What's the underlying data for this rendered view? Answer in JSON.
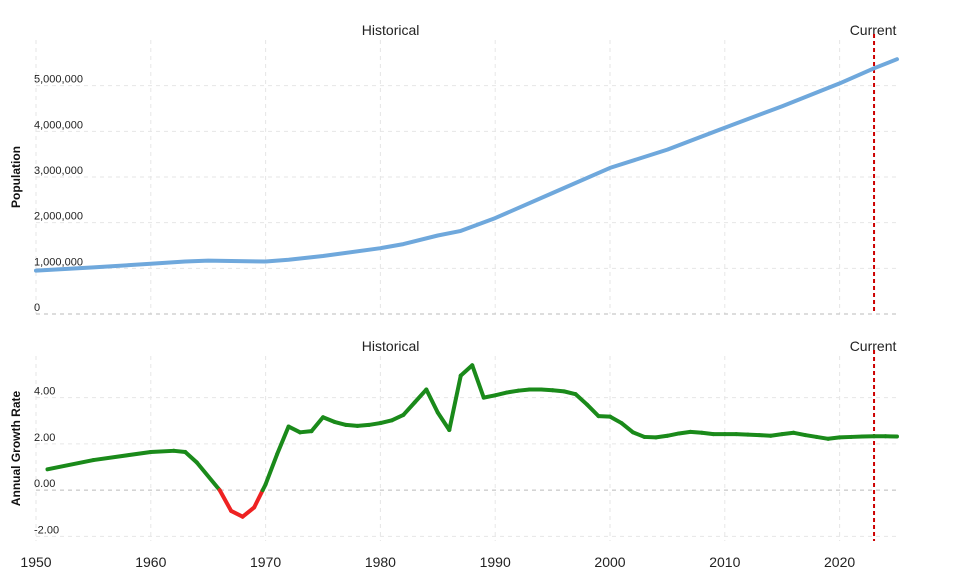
{
  "chart_data": [
    {
      "type": "line",
      "ylabel": "Population",
      "section_labels": {
        "historical": "Historical",
        "current": "Current"
      },
      "current_year": 2023,
      "xlim": [
        1950,
        2025
      ],
      "ylim": [
        0,
        6000000
      ],
      "y_ticks": [
        0,
        1000000,
        2000000,
        3000000,
        4000000,
        5000000
      ],
      "y_tick_labels": [
        "0",
        "1,000,000",
        "2,000,000",
        "3,000,000",
        "4,000,000",
        "5,000,000"
      ],
      "grid": true,
      "colors": {
        "line": "#6fa8dc",
        "current_marker": "#cc0000"
      },
      "series": [
        {
          "x": [
            1950,
            1955,
            1960,
            1963,
            1965,
            1967,
            1970,
            1972,
            1975,
            1980,
            1982,
            1985,
            1987,
            1990,
            1995,
            2000,
            2005,
            2010,
            2015,
            2020,
            2023,
            2025
          ],
          "values": [
            950000,
            1020000,
            1100000,
            1150000,
            1170000,
            1160000,
            1150000,
            1190000,
            1270000,
            1440000,
            1530000,
            1720000,
            1820000,
            2100000,
            2650000,
            3200000,
            3600000,
            4080000,
            4550000,
            5050000,
            5380000,
            5580000
          ]
        }
      ]
    },
    {
      "type": "line",
      "ylabel": "Annual Growth Rate",
      "section_labels": {
        "historical": "Historical",
        "current": "Current"
      },
      "current_year": 2023,
      "xlim": [
        1950,
        2025
      ],
      "ylim": [
        -2.2,
        5.8
      ],
      "y_ticks": [
        -2,
        0,
        2,
        4
      ],
      "y_tick_labels": [
        "-2.00",
        "0.00",
        "2.00",
        "4.00"
      ],
      "x_ticks": [
        1950,
        1960,
        1970,
        1980,
        1990,
        2000,
        2010,
        2020
      ],
      "x_tick_labels": [
        "1950",
        "1960",
        "1970",
        "1980",
        "1990",
        "2000",
        "2010",
        "2020"
      ],
      "grid": true,
      "colors": {
        "positive": "#1a8a1a",
        "negative": "#ee2222",
        "current_marker": "#cc0000"
      },
      "series": [
        {
          "x": [
            1951,
            1955,
            1960,
            1962,
            1963,
            1964,
            1966,
            1967,
            1968,
            1969,
            1970,
            1971,
            1972,
            1973,
            1974,
            1975,
            1976,
            1977,
            1978,
            1979,
            1980,
            1981,
            1982,
            1983,
            1984,
            1985,
            1986,
            1987,
            1988,
            1989,
            1990,
            1991,
            1992,
            1993,
            1994,
            1995,
            1996,
            1997,
            1998,
            1999,
            2000,
            2001,
            2002,
            2003,
            2004,
            2005,
            2006,
            2007,
            2008,
            2009,
            2010,
            2011,
            2012,
            2013,
            2014,
            2015,
            2016,
            2017,
            2018,
            2019,
            2020,
            2021,
            2022,
            2023,
            2024,
            2025
          ],
          "values": [
            0.9,
            1.3,
            1.65,
            1.7,
            1.65,
            1.2,
            0.0,
            -0.9,
            -1.15,
            -0.75,
            0.25,
            1.55,
            2.75,
            2.5,
            2.55,
            3.15,
            2.95,
            2.82,
            2.78,
            2.82,
            2.9,
            3.02,
            3.25,
            3.8,
            4.35,
            3.35,
            2.6,
            4.95,
            5.4,
            4.0,
            4.1,
            4.22,
            4.3,
            4.35,
            4.35,
            4.32,
            4.27,
            4.15,
            3.7,
            3.2,
            3.18,
            2.9,
            2.5,
            2.3,
            2.28,
            2.35,
            2.45,
            2.52,
            2.48,
            2.42,
            2.42,
            2.42,
            2.4,
            2.38,
            2.35,
            2.42,
            2.48,
            2.38,
            2.3,
            2.22,
            2.28,
            2.3,
            2.32,
            2.33,
            2.33,
            2.32
          ]
        }
      ]
    }
  ]
}
